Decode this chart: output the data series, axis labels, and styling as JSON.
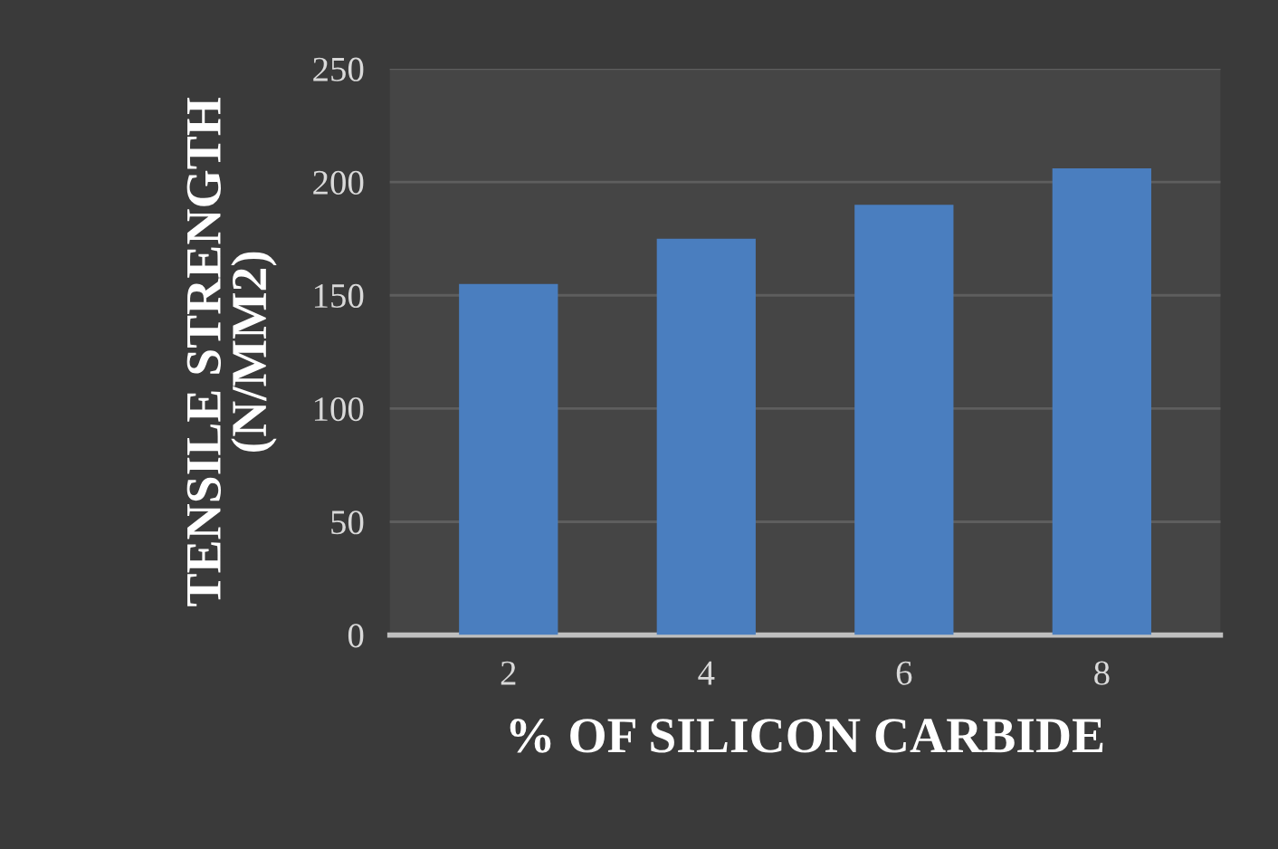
{
  "chart_data": {
    "type": "bar",
    "xlabel": "% OF SILICON CARBIDE",
    "ylabel": "TENSILE STRENGTH\n(N/MM2)",
    "categories": [
      "2",
      "4",
      "6",
      "8"
    ],
    "values": [
      155,
      175,
      190,
      206
    ],
    "color": "#4a7ebf",
    "ylim": [
      0,
      250
    ],
    "yticks": [
      0,
      50,
      100,
      150,
      200,
      250
    ],
    "grid": "y",
    "legend": false
  }
}
